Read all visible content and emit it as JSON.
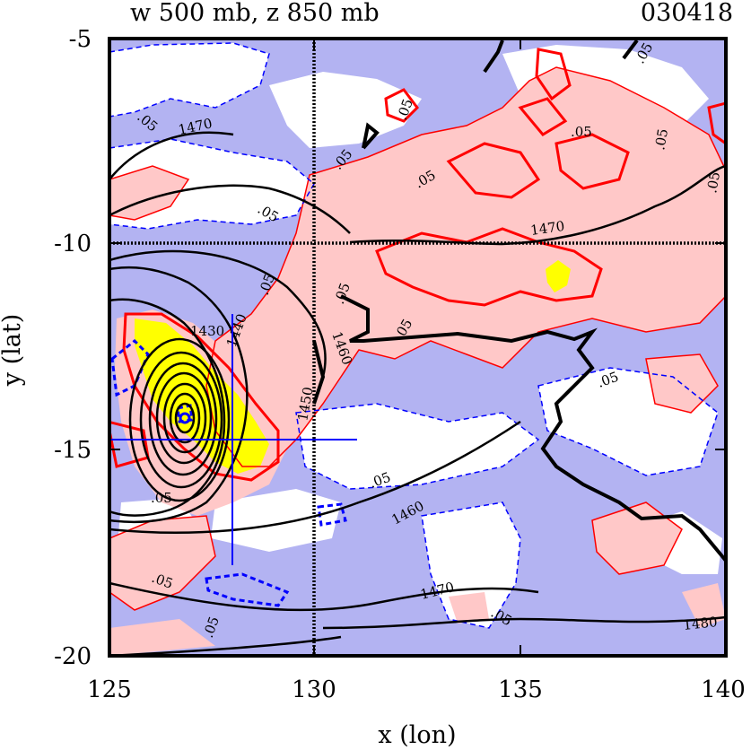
{
  "chart_data": {
    "type": "contour",
    "title": "w 500 mb, z 850 mb",
    "date": "030418",
    "xlabel": "x (lon)",
    "ylabel": "y (lat)",
    "xlim": [
      125,
      140
    ],
    "ylim": [
      -20,
      -5
    ],
    "x_ticks": [
      125,
      130,
      135,
      140
    ],
    "y_ticks": [
      -20,
      -15,
      -10,
      -5
    ],
    "grid": "dotted reference lines at x=130 and y=-10",
    "colors": {
      "negative_fill": "#b3b3f2",
      "positive_fill": "#ffc8c8",
      "strong_positive_fill": "#ffff00",
      "positive_contour": "#ff0000",
      "negative_contour": "#0000ff",
      "height_contour": "#000000",
      "cross_hair": "#0000ff"
    },
    "w_contour_label": ".05",
    "height_contours": [
      {
        "value": 1430,
        "label": "1430"
      },
      {
        "value": 1440,
        "label": "1440"
      },
      {
        "value": 1450,
        "label": "1450"
      },
      {
        "value": 1460,
        "label": "1460"
      },
      {
        "value": 1470,
        "label": "1470"
      },
      {
        "value": 1480,
        "label": "1480"
      }
    ],
    "cyclone_center": {
      "x": 126.9,
      "y": -14.2
    },
    "cross_hair": {
      "x": 128.0,
      "y": -14.7
    }
  }
}
